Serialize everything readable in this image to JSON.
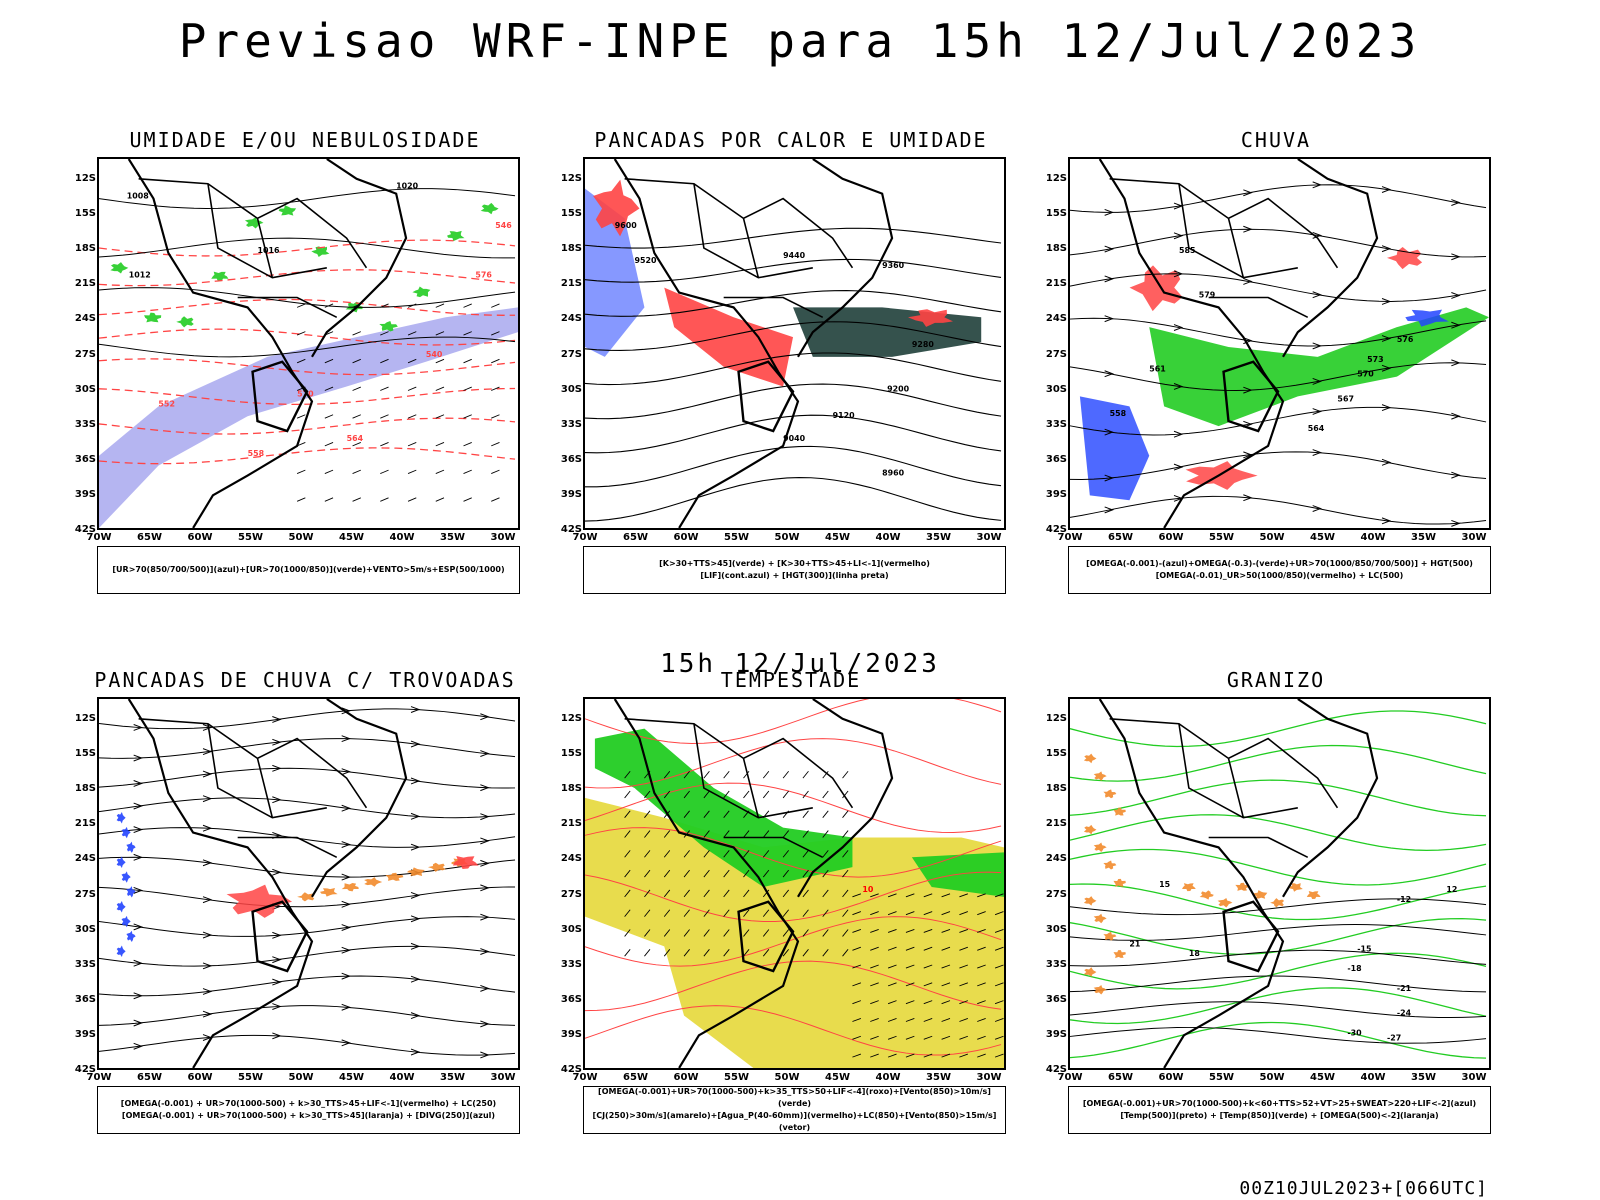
{
  "main_title": "Previsao WRF-INPE  para 15h 12/Jul/2023",
  "mid_title": "15h 12/Jul/2023",
  "footer": "00Z10JUL2023+[066UTC]",
  "axes": {
    "lat": [
      "12S",
      "15S",
      "18S",
      "21S",
      "24S",
      "27S",
      "30S",
      "33S",
      "36S",
      "39S",
      "42S"
    ],
    "lon": [
      "70W",
      "65W",
      "60W",
      "55W",
      "50W",
      "45W",
      "40W",
      "35W",
      "30W"
    ]
  },
  "colors": {
    "green": "#22cc22",
    "red": "#ff4444",
    "blue": "#2244ff",
    "lavender": "#a8a8ee",
    "dark_teal": "#1f3f3a",
    "orange": "#f28b2c",
    "yellow": "#e5d83a",
    "magenta": "#cc33cc"
  },
  "panels": [
    {
      "id": "umidade",
      "title": "UMIDADE E/OU NEBULOSIDADE",
      "legend": [
        "[UR>70(850/700/500)](azul)+[UR>70(1000/850)](verde)+VENTO>5m/s+ESP(500/1000)"
      ],
      "contour_labels": [
        "1008",
        "1012",
        "1016",
        "1020",
        "576",
        "570",
        "564",
        "558",
        "552",
        "546",
        "540"
      ]
    },
    {
      "id": "pancadas_calor",
      "title": "PANCADAS POR CALOR E UMIDADE",
      "legend": [
        "[K>30+TTS>45](verde) + [K>30+TTS>45+LI<-1](vermelho)",
        "[LIF](cont.azul) + [HGT(300)](linha preta)"
      ],
      "contour_labels": [
        "9600",
        "9520",
        "9440",
        "9360",
        "9280",
        "9200",
        "9120",
        "9040",
        "8960"
      ]
    },
    {
      "id": "chuva",
      "title": "CHUVA",
      "legend": [
        "[OMEGA(-0.001)-(azul)+OMEGA(-0.3)-(verde)+UR>70(1000/850/700/500)] + HGT(500)",
        "[OMEGA(-0.01)_UR>50(1000/850)(vermelho) + LC(500)"
      ],
      "contour_labels": [
        "585",
        "579",
        "576",
        "573",
        "570",
        "567",
        "564",
        "561",
        "558"
      ]
    },
    {
      "id": "trovoadas",
      "title": "PANCADAS DE CHUVA C/ TROVOADAS",
      "legend": [
        "[OMEGA(-0.001) + UR>70(1000-500) + k>30_TTS>45+LIF<-1](vermelho) + LC(250)",
        "[OMEGA(-0.001) + UR>70(1000-500) + k>30_TTS>45](laranja) + [DIVG(250)](azul)"
      ],
      "contour_labels": []
    },
    {
      "id": "tempestade",
      "title": "TEMPESTADE",
      "legend": [
        "[OMEGA(-0.001)+UR>70(1000-500)+k>35_TTS>50+LIF<-4](roxo)+[Vento(850)>10m/s](verde)",
        "[CJ(250)>30m/s](amarelo)+[Agua_P(40-60mm)](vermelho)+LC(850)+[Vento(850)>15m/s](vetor)"
      ],
      "contour_labels": [
        "10"
      ]
    },
    {
      "id": "granizo",
      "title": "GRANIZO",
      "legend": [
        "[OMEGA(-0.001)+UR>70(1000-500)+k<60+TTS>52+VT>25+SWEAT>220+LIF<-2](azul)",
        "[Temp(500)](preto) + [Temp(850)](verde) + [OMEGA(500)<-2](laranja)"
      ],
      "contour_labels": [
        "-12",
        "-15",
        "-18",
        "-21",
        "-24",
        "-27",
        "-30",
        "15",
        "18",
        "21",
        "12"
      ]
    }
  ]
}
